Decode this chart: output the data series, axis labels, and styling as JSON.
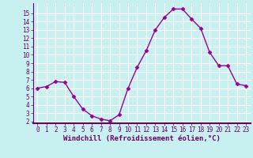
{
  "x": [
    0,
    1,
    2,
    3,
    4,
    5,
    6,
    7,
    8,
    9,
    10,
    11,
    12,
    13,
    14,
    15,
    16,
    17,
    18,
    19,
    20,
    21,
    22,
    23
  ],
  "y": [
    6.0,
    6.2,
    6.8,
    6.7,
    5.0,
    3.5,
    2.7,
    2.3,
    2.1,
    2.8,
    6.0,
    8.5,
    10.5,
    13.0,
    14.5,
    15.5,
    15.5,
    14.3,
    13.2,
    10.3,
    8.7,
    8.7,
    6.5,
    6.3
  ],
  "line_color": "#990099",
  "marker": "D",
  "markersize": 2.5,
  "linewidth": 1.0,
  "bg_color": "#c8f0f0",
  "grid_color": "#ffffff",
  "xlabel": "Windchill (Refroidissement éolien,°C)",
  "ylabel": "",
  "xlim": [
    -0.5,
    23.5
  ],
  "ylim": [
    1.8,
    16.2
  ],
  "yticks": [
    2,
    3,
    4,
    5,
    6,
    7,
    8,
    9,
    10,
    11,
    12,
    13,
    14,
    15
  ],
  "xticks": [
    0,
    1,
    2,
    3,
    4,
    5,
    6,
    7,
    8,
    9,
    10,
    11,
    12,
    13,
    14,
    15,
    16,
    17,
    18,
    19,
    20,
    21,
    22,
    23
  ],
  "tick_fontsize": 5.5,
  "xlabel_fontsize": 6.5,
  "axis_color": "#660066",
  "spine_color": "#660066",
  "bottom_bar_color": "#660066"
}
